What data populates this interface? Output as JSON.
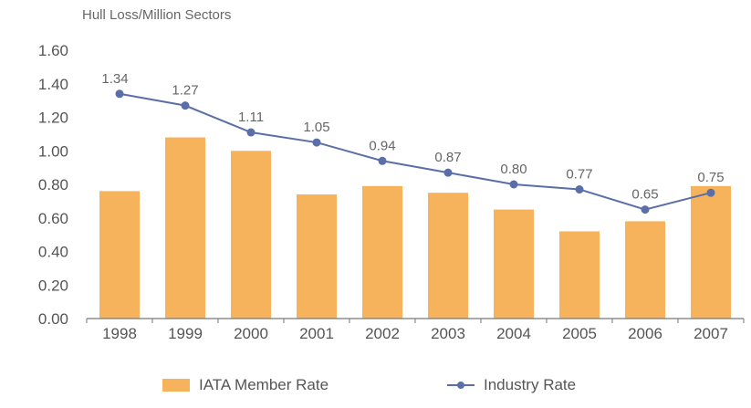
{
  "chart_data": {
    "type": "bar",
    "title": "",
    "unit_label": "Hull Loss/Million Sectors",
    "xlabel": "",
    "ylabel": "",
    "ylim": [
      0,
      1.6
    ],
    "yticks": [
      "0.00",
      "0.20",
      "0.40",
      "0.60",
      "0.80",
      "1.00",
      "1.20",
      "1.40",
      "1.60"
    ],
    "categories": [
      "1998",
      "1999",
      "2000",
      "2001",
      "2002",
      "2003",
      "2004",
      "2005",
      "2006",
      "2007"
    ],
    "grid": false,
    "legend_position": "bottom",
    "series": [
      {
        "name": "IATA Member Rate",
        "kind": "bar",
        "color": "#f7b35c",
        "values": [
          0.76,
          1.08,
          1.0,
          0.74,
          0.79,
          0.75,
          0.65,
          0.52,
          0.58,
          0.79
        ]
      },
      {
        "name": "Industry Rate",
        "kind": "line",
        "color": "#5a6fa8",
        "values": [
          1.34,
          1.27,
          1.11,
          1.05,
          0.94,
          0.87,
          0.8,
          0.77,
          0.65,
          0.75
        ],
        "data_labels": [
          "1.34",
          "1.27",
          "1.11",
          "1.05",
          "0.94",
          "0.87",
          "0.80",
          "0.77",
          "0.65",
          "0.75"
        ]
      }
    ]
  }
}
